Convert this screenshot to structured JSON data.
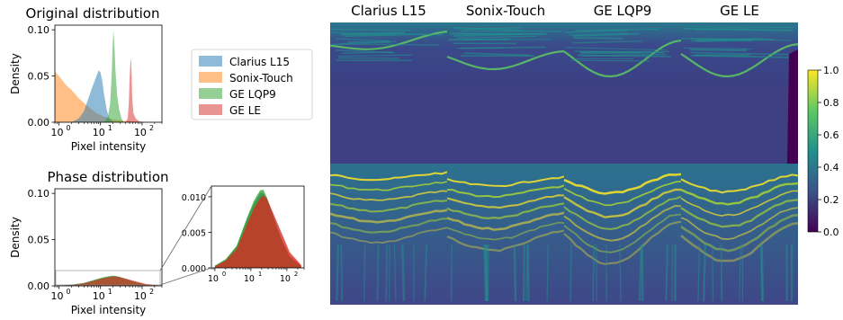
{
  "colors": {
    "Clarius L15": "#1f77b4",
    "Sonix-Touch": "#ff7f0e",
    "GE LQP9": "#2ca02c",
    "GE LE": "#d62728"
  },
  "colormap": [
    "#440154",
    "#3b528b",
    "#21918c",
    "#5ec962",
    "#fde725"
  ],
  "chart_data": [
    {
      "type": "area",
      "title": "Original distribution",
      "xlabel": "Pixel intensity",
      "ylabel": "Density",
      "xscale": "log",
      "xlim": [
        0.8,
        300
      ],
      "ylim": [
        0,
        0.105
      ],
      "x_ticks": [
        {
          "value": 1,
          "label": "10"
        },
        {
          "value": 10,
          "label": "10"
        },
        {
          "value": 100,
          "label": "10"
        }
      ],
      "x_tick_exponents": [
        "0",
        "1",
        "2"
      ],
      "y_ticks": [
        {
          "value": 0,
          "label": "0.00"
        },
        {
          "value": 0.05,
          "label": "0.05"
        },
        {
          "value": 0.1,
          "label": "0.10"
        }
      ],
      "series": [
        {
          "name": "Clarius L15",
          "x": [
            2,
            3,
            4,
            6,
            8,
            9,
            10,
            11,
            12,
            14,
            16,
            20
          ],
          "y": [
            0,
            0.004,
            0.012,
            0.035,
            0.05,
            0.056,
            0.054,
            0.045,
            0.032,
            0.014,
            0.005,
            0
          ]
        },
        {
          "name": "Sonix-Touch",
          "x": [
            0.8,
            1,
            1.5,
            2,
            3,
            5,
            8,
            12,
            20,
            40,
            80,
            150
          ],
          "y": [
            0.055,
            0.05,
            0.04,
            0.035,
            0.026,
            0.017,
            0.01,
            0.006,
            0.003,
            0.0015,
            0.0005,
            0
          ]
        },
        {
          "name": "GE LQP9",
          "x": [
            12,
            15,
            17,
            18.5,
            19.5,
            20.5,
            21.5,
            23,
            25,
            28,
            32,
            36
          ],
          "y": [
            0,
            0.006,
            0.02,
            0.05,
            0.08,
            0.1,
            0.085,
            0.055,
            0.03,
            0.014,
            0.004,
            0
          ]
        },
        {
          "name": "GE LE",
          "x": [
            40,
            45,
            48,
            50,
            52,
            54,
            56,
            58,
            62,
            70,
            85,
            110
          ],
          "y": [
            0,
            0.004,
            0.02,
            0.045,
            0.063,
            0.07,
            0.052,
            0.025,
            0.01,
            0.004,
            0.001,
            0
          ]
        }
      ],
      "legend": {
        "position": "right",
        "entries": [
          "Clarius L15",
          "Sonix-Touch",
          "GE LQP9",
          "GE LE"
        ]
      }
    },
    {
      "type": "area",
      "title": "Phase distribution",
      "xlabel": "Pixel intensity",
      "ylabel": "Density",
      "xscale": "log",
      "xlim": [
        0.8,
        300
      ],
      "ylim": [
        0,
        0.105
      ],
      "x_ticks": [
        {
          "value": 1,
          "label": "10"
        },
        {
          "value": 10,
          "label": "10"
        },
        {
          "value": 100,
          "label": "10"
        }
      ],
      "x_tick_exponents": [
        "0",
        "1",
        "2"
      ],
      "y_ticks": [
        {
          "value": 0,
          "label": "0.00"
        },
        {
          "value": 0.05,
          "label": "0.05"
        },
        {
          "value": 0.1,
          "label": "0.10"
        }
      ],
      "series": [
        {
          "name": "Clarius L15",
          "x": [
            1,
            2,
            4,
            8,
            12,
            18,
            22,
            28,
            40,
            70,
            120,
            250
          ],
          "y": [
            0.0003,
            0.0012,
            0.003,
            0.007,
            0.009,
            0.0105,
            0.0105,
            0.0096,
            0.0075,
            0.004,
            0.0015,
            0.0002
          ]
        },
        {
          "name": "Sonix-Touch",
          "x": [
            1,
            2,
            4,
            8,
            12,
            18,
            22,
            28,
            40,
            70,
            120,
            250
          ],
          "y": [
            0.0003,
            0.0011,
            0.0028,
            0.0065,
            0.0085,
            0.0098,
            0.0099,
            0.0092,
            0.0072,
            0.0042,
            0.0017,
            0.0003
          ]
        },
        {
          "name": "GE LQP9",
          "x": [
            1,
            2,
            4,
            8,
            12,
            18,
            22,
            28,
            40,
            70,
            120,
            250
          ],
          "y": [
            0.0003,
            0.0012,
            0.0031,
            0.0072,
            0.0094,
            0.0109,
            0.011,
            0.0099,
            0.0076,
            0.004,
            0.0015,
            0.0002
          ]
        },
        {
          "name": "GE LE",
          "x": [
            1,
            2,
            4,
            8,
            12,
            18,
            22,
            28,
            40,
            70,
            120,
            250
          ],
          "y": [
            0.0002,
            0.001,
            0.0026,
            0.0062,
            0.0083,
            0.0098,
            0.0102,
            0.0097,
            0.0079,
            0.005,
            0.0022,
            0.0004
          ]
        }
      ]
    },
    {
      "type": "area",
      "title": "",
      "xscale": "log",
      "xlim": [
        0.8,
        300
      ],
      "ylim": [
        0,
        0.0115
      ],
      "x_ticks": [
        {
          "value": 1,
          "label": "10"
        },
        {
          "value": 10,
          "label": "10"
        },
        {
          "value": 100,
          "label": "10"
        }
      ],
      "x_tick_exponents": [
        "0",
        "1",
        "2"
      ],
      "y_ticks": [
        {
          "value": 0,
          "label": "0.000"
        },
        {
          "value": 0.005,
          "label": "0.005"
        },
        {
          "value": 0.01,
          "label": "0.010"
        }
      ],
      "series_ref": "Phase distribution"
    },
    {
      "type": "heatmap",
      "column_titles": [
        "Clarius L15",
        "Sonix-Touch",
        "GE LQP9",
        "GE LE"
      ],
      "rows": 2,
      "colorbar": {
        "vmin": 0,
        "vmax": 1,
        "ticks": [
          {
            "value": 0,
            "label": "0.0"
          },
          {
            "value": 0.2,
            "label": "0.2"
          },
          {
            "value": 0.4,
            "label": "0.4"
          },
          {
            "value": 0.6,
            "label": "0.6"
          },
          {
            "value": 0.8,
            "label": "0.8"
          },
          {
            "value": 1,
            "label": "1.0"
          }
        ]
      }
    }
  ]
}
